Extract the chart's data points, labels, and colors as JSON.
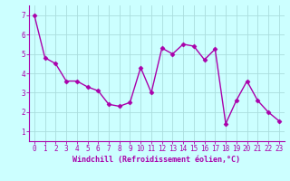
{
  "x": [
    0,
    1,
    2,
    3,
    4,
    5,
    6,
    7,
    8,
    9,
    10,
    11,
    12,
    13,
    14,
    15,
    16,
    17,
    18,
    19,
    20,
    21,
    22,
    23
  ],
  "y": [
    7.0,
    4.8,
    4.5,
    3.6,
    3.6,
    3.3,
    3.1,
    2.4,
    2.3,
    2.5,
    4.3,
    3.0,
    5.3,
    5.0,
    5.5,
    5.4,
    4.7,
    5.25,
    1.4,
    2.6,
    3.6,
    2.6,
    2.0,
    1.55
  ],
  "xlabel": "Windchill (Refroidissement éolien,°C)",
  "ylim": [
    0.5,
    7.5
  ],
  "xlim": [
    -0.5,
    23.5
  ],
  "yticks": [
    1,
    2,
    3,
    4,
    5,
    6,
    7
  ],
  "xticks": [
    0,
    1,
    2,
    3,
    4,
    5,
    6,
    7,
    8,
    9,
    10,
    11,
    12,
    13,
    14,
    15,
    16,
    17,
    18,
    19,
    20,
    21,
    22,
    23
  ],
  "line_color": "#aa00aa",
  "marker": "D",
  "marker_size": 2.5,
  "line_width": 1.0,
  "background_color": "#ccffff",
  "grid_color": "#aadddd",
  "tick_color": "#aa00aa",
  "label_color": "#aa00aa",
  "xlabel_fontsize": 6.0,
  "tick_fontsize": 5.5,
  "figsize": [
    3.2,
    2.0
  ],
  "dpi": 100
}
